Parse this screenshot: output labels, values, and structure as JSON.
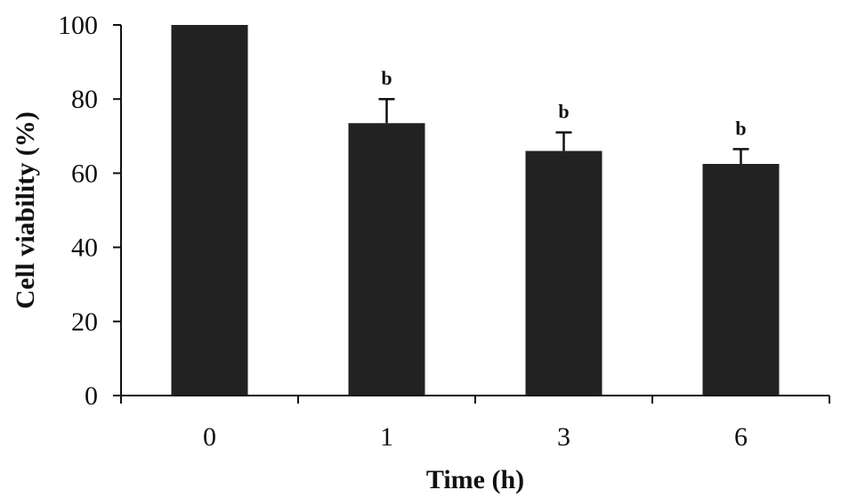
{
  "chart_data": {
    "type": "bar",
    "categories": [
      "0",
      "1",
      "3",
      "6"
    ],
    "values": [
      100,
      73.5,
      66,
      62.5
    ],
    "errors": [
      0,
      6.5,
      5,
      4
    ],
    "annotations": [
      "",
      "b",
      "b",
      "b"
    ],
    "xlabel": "Time (h)",
    "ylabel": "Cell viability (%)",
    "ylim": [
      0,
      100
    ],
    "yticks": [
      0,
      20,
      40,
      60,
      80,
      100
    ],
    "grid": false,
    "bar_color": "#222222"
  }
}
